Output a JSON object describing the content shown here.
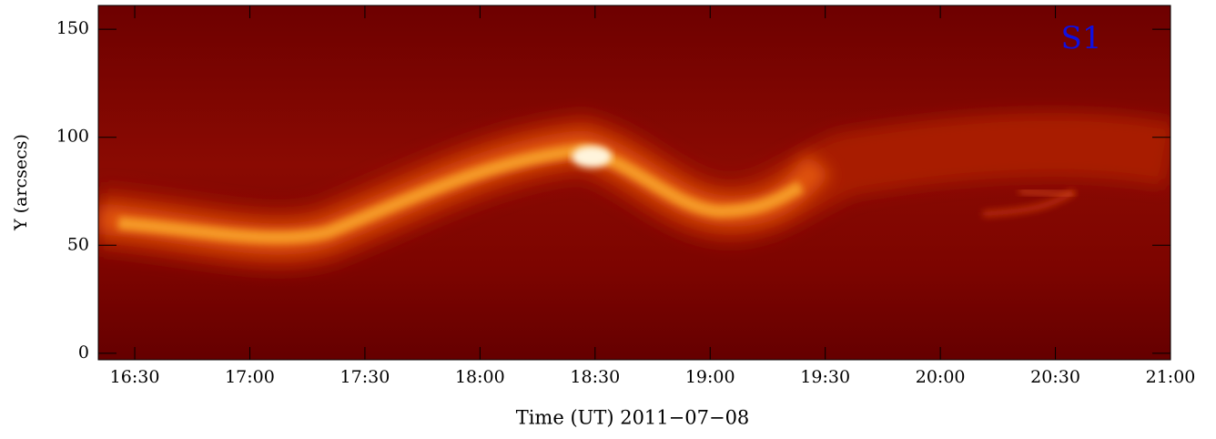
{
  "chart_data": {
    "type": "heatmap",
    "title": "S1",
    "x_label": "Time (UT) 2011−07−08",
    "y_label": "Y (arcsecs)",
    "xlim": [
      "2011-07-08T16:20:30",
      "2011-07-08T21:00:00"
    ],
    "xticks": [
      {
        "value": "2011-07-08T16:30:00",
        "label": "16:30"
      },
      {
        "value": "2011-07-08T17:00:00",
        "label": "17:00"
      },
      {
        "value": "2011-07-08T17:30:00",
        "label": "17:30"
      },
      {
        "value": "2011-07-08T18:00:00",
        "label": "18:00"
      },
      {
        "value": "2011-07-08T18:30:00",
        "label": "18:30"
      },
      {
        "value": "2011-07-08T19:00:00",
        "label": "19:00"
      },
      {
        "value": "2011-07-08T19:30:00",
        "label": "19:30"
      },
      {
        "value": "2011-07-08T20:00:00",
        "label": "20:00"
      },
      {
        "value": "2011-07-08T20:30:00",
        "label": "20:30"
      },
      {
        "value": "2011-07-08T21:00:00",
        "label": "21:00"
      }
    ],
    "ylim": [
      -3,
      161
    ],
    "yticks": [
      0,
      50,
      100,
      150
    ],
    "title_color": "#1010e0"
  }
}
